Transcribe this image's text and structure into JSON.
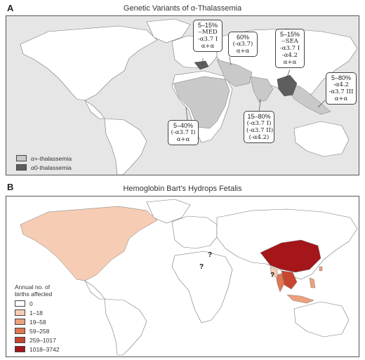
{
  "panel_a": {
    "letter": "A",
    "title": "Genetic Variants of α-Thalassemia",
    "callouts": [
      {
        "id": "med",
        "lines": [
          "5–15%",
          "--MED",
          "-α3.7 I",
          "α+α"
        ]
      },
      {
        "id": "mideast",
        "lines": [
          "60%",
          "(-α3.7)",
          "α+α"
        ]
      },
      {
        "id": "sea",
        "lines": [
          "5–15%",
          "--SEA",
          "-α3.7 I",
          "-α4.2",
          "α+α"
        ]
      },
      {
        "id": "oceania",
        "lines": [
          "5–80%",
          "-α4.2",
          "-α3.7 III",
          "α+α"
        ]
      },
      {
        "id": "africa",
        "lines": [
          "5–40%",
          "(-α3.7 I)",
          "α+α"
        ]
      },
      {
        "id": "india",
        "lines": [
          "15–80%",
          "(-α3.7 I)",
          "(-α3.7 II)",
          "(-α4.2)"
        ]
      }
    ],
    "legend": [
      {
        "label": "α+-thalassemia",
        "color": "#c9c9c9"
      },
      {
        "label": "α0-thalassemia",
        "color": "#5e5e5e"
      }
    ]
  },
  "panel_b": {
    "letter": "B",
    "title": "Hemoglobin Bart's Hydrops Fetalis",
    "legend_title": [
      "Annual no. of",
      "births affected"
    ],
    "legend": [
      {
        "label": "0",
        "color": "#ffffff"
      },
      {
        "label": "1–18",
        "color": "#f6cdb4"
      },
      {
        "label": "19–58",
        "color": "#eda07c"
      },
      {
        "label": "59–258",
        "color": "#e0764f"
      },
      {
        "label": "259–1017",
        "color": "#c8462e"
      },
      {
        "label": "1018–3742",
        "color": "#a5161a"
      }
    ],
    "question_marks": [
      "?",
      "?",
      "?"
    ]
  },
  "colors": {
    "ocean": "#e6e6e6",
    "land": "#ffffff",
    "alpha_plus": "#c9c9c9",
    "alpha_zero": "#5e5e5e"
  }
}
